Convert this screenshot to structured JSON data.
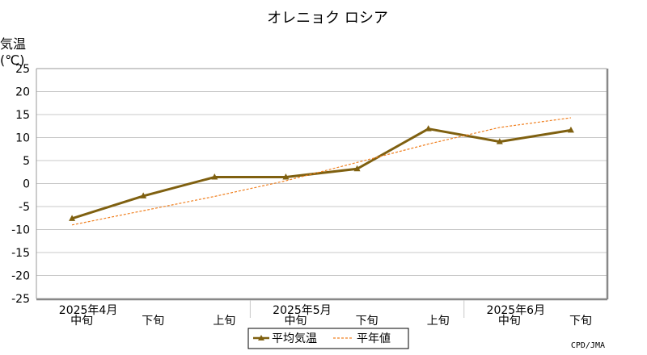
{
  "chart_data": {
    "type": "line",
    "title": "オレニョク ロシア",
    "ylabel_line1": "気温",
    "ylabel_line2": "(℃)",
    "ylim": [
      -25,
      25
    ],
    "yticks": [
      25,
      20,
      15,
      10,
      5,
      0,
      -5,
      -10,
      -15,
      -20,
      -25
    ],
    "grid": true,
    "categories": [
      "中旬",
      "下旬",
      "上旬",
      "中旬",
      "下旬",
      "上旬",
      "中旬",
      "下旬"
    ],
    "months": [
      {
        "label": "2025年4月"
      },
      {
        "label": "2025年5月"
      },
      {
        "label": "2025年6月"
      }
    ],
    "series": [
      {
        "name": "平均気温",
        "color": "#7f6010",
        "style": "solid",
        "marker": "triangle",
        "values": [
          -7.6,
          -2.7,
          1.4,
          1.4,
          3.2,
          11.9,
          9.1,
          11.6
        ]
      },
      {
        "name": "平年値",
        "color": "#f08020",
        "style": "dashed",
        "marker": "none",
        "values": [
          -9.0,
          -5.9,
          -2.8,
          0.6,
          4.6,
          8.6,
          12.2,
          14.3
        ]
      }
    ],
    "legend_position": "bottom",
    "credit": "CPD/JMA"
  }
}
